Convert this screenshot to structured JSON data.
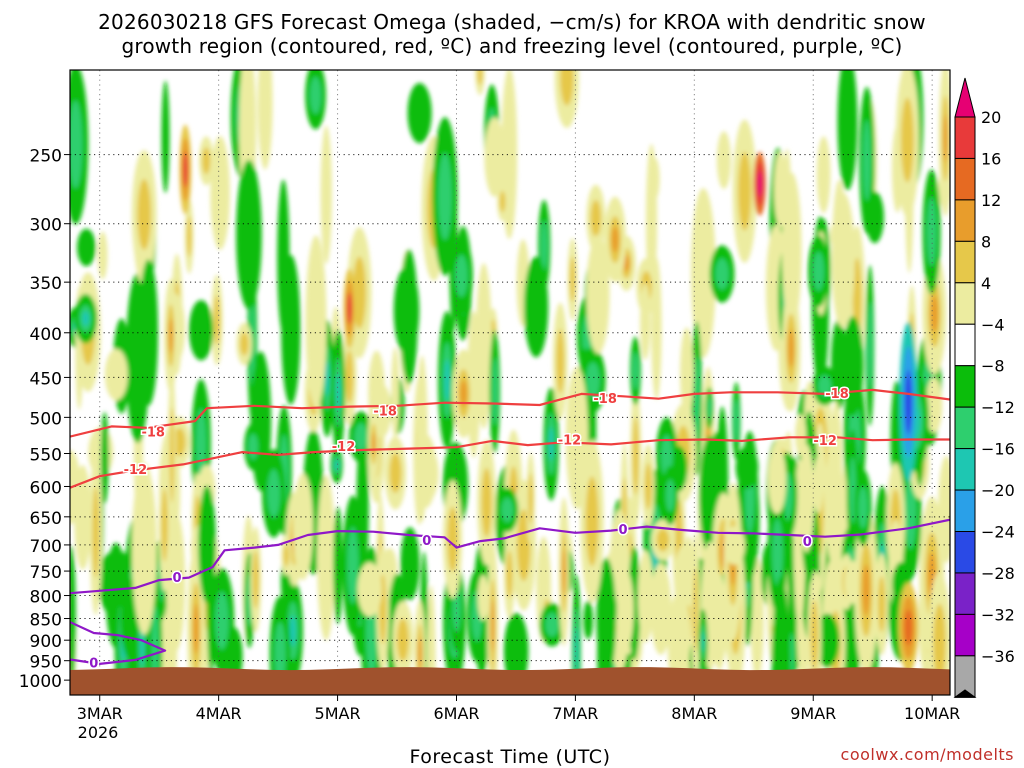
{
  "title_line1": "2026030218 GFS Forecast Omega (shaded, −cm/s) for KROA with dendritic snow",
  "title_line2": "growth region (contoured, red, ºC) and freezing level (contoured, purple, ºC)",
  "credit": "coolwx.com/modelts",
  "chart_data": {
    "type": "heatmap",
    "title": "2026030218 GFS Forecast Omega (shaded, −cm/s) for KROA with dendritic snow growth region (contoured, red, ºC) and freezing level (contoured, purple, ºC)",
    "xlabel": "Forecast Time (UTC)",
    "ylabel": "",
    "x_ticks": [
      "3MAR",
      "4MAR",
      "5MAR",
      "6MAR",
      "7MAR",
      "8MAR",
      "9MAR",
      "10MAR"
    ],
    "x_year_label": "2026",
    "x_range_days": [
      -0.25,
      7.15
    ],
    "y_ticks": [
      250,
      300,
      350,
      400,
      450,
      500,
      550,
      600,
      650,
      700,
      750,
      800,
      850,
      900,
      950,
      1000
    ],
    "y_range_hpa": [
      200,
      1040
    ],
    "y_scale": "log-pressure",
    "grid": true,
    "colorbar": {
      "labels": [
        "20",
        "16",
        "12",
        "8",
        "4",
        "−4",
        "−8",
        "−12",
        "−16",
        "−20",
        "−24",
        "−28",
        "−32",
        "−36"
      ],
      "colors": [
        "#e60073",
        "#e83a3a",
        "#e66a22",
        "#e89d2c",
        "#e6c84a",
        "#ececa0",
        "#ffffff",
        "#0bbd0b",
        "#2ecf6e",
        "#1ec7b2",
        "#2aa0e8",
        "#2a4ae6",
        "#7a22c8",
        "#a600c8",
        "#a8a8a8",
        "#000000"
      ]
    },
    "ground": {
      "color": "#a0522d",
      "surface_hpa": 970
    },
    "contours": [
      {
        "kind": "dendritic",
        "level": -18,
        "color": "#ef3f3f",
        "label_positions": [
          [
            0.45,
            519
          ],
          [
            2.4,
            491
          ],
          [
            4.25,
            475
          ],
          [
            6.2,
            469
          ]
        ],
        "points": [
          [
            -0.25,
            526
          ],
          [
            0.1,
            512
          ],
          [
            0.4,
            514
          ],
          [
            0.8,
            505
          ],
          [
            0.9,
            488
          ],
          [
            1.3,
            485
          ],
          [
            1.7,
            488
          ],
          [
            2.1,
            486
          ],
          [
            2.5,
            485
          ],
          [
            2.9,
            481
          ],
          [
            3.3,
            482
          ],
          [
            3.7,
            484
          ],
          [
            4.05,
            470
          ],
          [
            4.4,
            473
          ],
          [
            4.7,
            476
          ],
          [
            5.0,
            470
          ],
          [
            5.3,
            468
          ],
          [
            5.7,
            468
          ],
          [
            6.1,
            470
          ],
          [
            6.5,
            465
          ],
          [
            6.8,
            470
          ],
          [
            7.15,
            477
          ]
        ]
      },
      {
        "kind": "dendritic",
        "level": -12,
        "color": "#ef3f3f",
        "label_positions": [
          [
            0.3,
            573
          ],
          [
            2.05,
            539
          ],
          [
            3.95,
            530
          ],
          [
            6.1,
            531
          ]
        ],
        "points": [
          [
            -0.25,
            602
          ],
          [
            0.0,
            584
          ],
          [
            0.3,
            575
          ],
          [
            0.7,
            566
          ],
          [
            0.95,
            557
          ],
          [
            1.2,
            548
          ],
          [
            1.5,
            552
          ],
          [
            1.8,
            548
          ],
          [
            2.2,
            545
          ],
          [
            2.6,
            543
          ],
          [
            3.0,
            541
          ],
          [
            3.3,
            532
          ],
          [
            3.6,
            538
          ],
          [
            3.9,
            534
          ],
          [
            4.3,
            537
          ],
          [
            4.7,
            531
          ],
          [
            5.1,
            530
          ],
          [
            5.4,
            532
          ],
          [
            5.8,
            527
          ],
          [
            6.2,
            527
          ],
          [
            6.5,
            531
          ],
          [
            6.8,
            530
          ],
          [
            7.15,
            530
          ]
        ]
      },
      {
        "kind": "freezing",
        "level": 0,
        "color": "#8f18c8",
        "label_positions": [
          [
            0.65,
            762
          ],
          [
            2.75,
            691
          ],
          [
            4.4,
            671
          ],
          [
            5.95,
            693
          ]
        ],
        "points": [
          [
            -0.25,
            795
          ],
          [
            0.0,
            790
          ],
          [
            0.3,
            784
          ],
          [
            0.5,
            768
          ],
          [
            0.75,
            763
          ],
          [
            0.95,
            742
          ],
          [
            1.05,
            710
          ],
          [
            1.3,
            705
          ],
          [
            1.5,
            700
          ],
          [
            1.75,
            682
          ],
          [
            2.0,
            675
          ],
          [
            2.3,
            676
          ],
          [
            2.6,
            682
          ],
          [
            2.9,
            686
          ],
          [
            3.0,
            705
          ],
          [
            3.2,
            693
          ],
          [
            3.4,
            688
          ],
          [
            3.7,
            670
          ],
          [
            4.0,
            678
          ],
          [
            4.3,
            674
          ],
          [
            4.6,
            667
          ],
          [
            4.9,
            673
          ],
          [
            5.2,
            678
          ],
          [
            5.5,
            679
          ],
          [
            5.8,
            682
          ],
          [
            6.1,
            685
          ],
          [
            6.4,
            681
          ],
          [
            6.8,
            670
          ],
          [
            7.15,
            655
          ]
        ]
      },
      {
        "kind": "freezing",
        "level": 0,
        "color": "#8f18c8",
        "label_positions": [
          [
            -0.05,
            955
          ]
        ],
        "points": [
          [
            -0.25,
            858
          ],
          [
            -0.05,
            883
          ],
          [
            0.15,
            888
          ],
          [
            0.35,
            900
          ],
          [
            0.55,
            925
          ],
          [
            0.3,
            948
          ],
          [
            0.0,
            958
          ],
          [
            -0.25,
            947
          ]
        ]
      }
    ]
  }
}
